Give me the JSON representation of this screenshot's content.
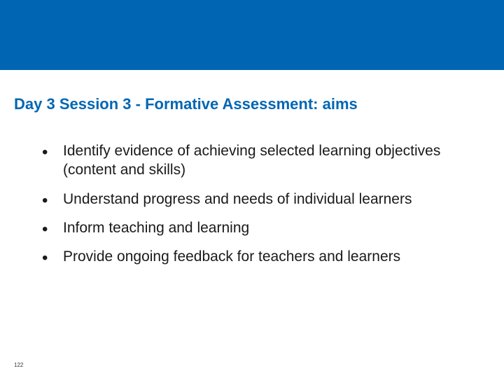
{
  "header": {
    "band_color": "#0066b3"
  },
  "title": {
    "text": "Day 3 Session 3 - Formative Assessment: aims",
    "color": "#0066b3",
    "fontsize": 22,
    "fontweight": "bold"
  },
  "bullets": {
    "items": [
      "Identify evidence of achieving selected learning objectives (content and skills)",
      "Understand progress and needs of individual learners",
      "Inform teaching and learning",
      "Provide ongoing feedback for teachers and learners"
    ],
    "fontsize": 21,
    "text_color": "#1a1a1a",
    "bullet_color": "#1a1a1a"
  },
  "footer": {
    "page_number": "122",
    "fontsize": 8,
    "color": "#333333"
  },
  "background_color": "#ffffff"
}
